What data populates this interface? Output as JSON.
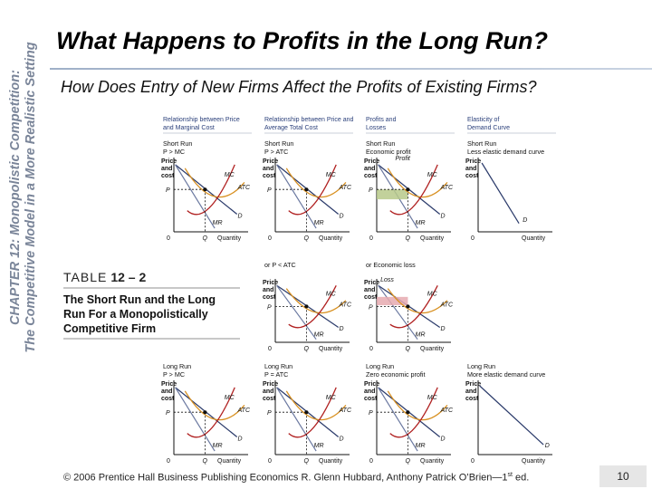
{
  "sidebar": {
    "line1": "CHAPTER 12: Monopolistic Competition:",
    "line2": "The Competitive Model in a More Realistic Setting"
  },
  "title": "What Happens to Profits in the Long Run?",
  "subtitle": "How Does Entry of New Firms Affect the Profits of Existing Firms?",
  "table_caption": {
    "label": "TABLE",
    "number": "12 – 2",
    "description": "The Short Run and the Long Run For a Monopolistically Competitive Firm"
  },
  "figure": {
    "column_headers": [
      "Relationship between Price and Marginal Cost",
      "Relationship between Price and Average Total Cost",
      "Profits and Losses",
      "Elasticity of Demand Curve"
    ],
    "axis": {
      "y_label": [
        "Price",
        "and",
        "cost"
      ],
      "x_label": "Quantity",
      "origin": "0"
    },
    "curve_labels": {
      "mc": "MC",
      "atc": "ATC",
      "mr": "MR",
      "d": "D"
    },
    "tick_labels": {
      "price": "P",
      "quantity": "Q"
    },
    "rows": [
      {
        "panels": [
          {
            "heading": [
              "Short Run",
              "P > MC"
            ],
            "curves": "full"
          },
          {
            "heading": [
              "Short Run",
              "P > ATC"
            ],
            "curves": "full"
          },
          {
            "heading": [
              "Short Run",
              "Economic profit"
            ],
            "curves": "full",
            "area": "Profit"
          },
          {
            "heading": [
              "Short Run",
              "Less elastic demand curve"
            ],
            "curves": "demand"
          }
        ]
      },
      {
        "panels": [
          {
            "heading": [],
            "curves": "none"
          },
          {
            "heading": [
              "or P < ATC"
            ],
            "curves": "full"
          },
          {
            "heading": [
              "or Economic loss"
            ],
            "curves": "full",
            "area": "Loss"
          },
          {
            "heading": [],
            "curves": "none"
          }
        ]
      },
      {
        "panels": [
          {
            "heading": [
              "Long Run",
              "P > MC"
            ],
            "curves": "full"
          },
          {
            "heading": [
              "Long Run",
              "P = ATC"
            ],
            "curves": "full"
          },
          {
            "heading": [
              "Long Run",
              "Zero economic profit"
            ],
            "curves": "full"
          },
          {
            "heading": [
              "Long Run",
              "More elastic demand curve"
            ],
            "curves": "demand"
          }
        ]
      }
    ]
  },
  "footer": {
    "text_before": "© 2006 Prentice Hall Business Publishing   Economics  R. Glenn Hubbard, Anthony Patrick O’Brien—1",
    "sup": "st",
    "text_after": " ed."
  },
  "page_number": "10",
  "colors": {
    "sidebar_text": "#7a8599",
    "mc_curve": "#b02020",
    "atc_curve": "#d89020",
    "demand_curve": "#2a3a6a",
    "mr_curve": "#6a78a0",
    "profit_fill": "#b7c989",
    "loss_fill": "#e6aab0"
  }
}
